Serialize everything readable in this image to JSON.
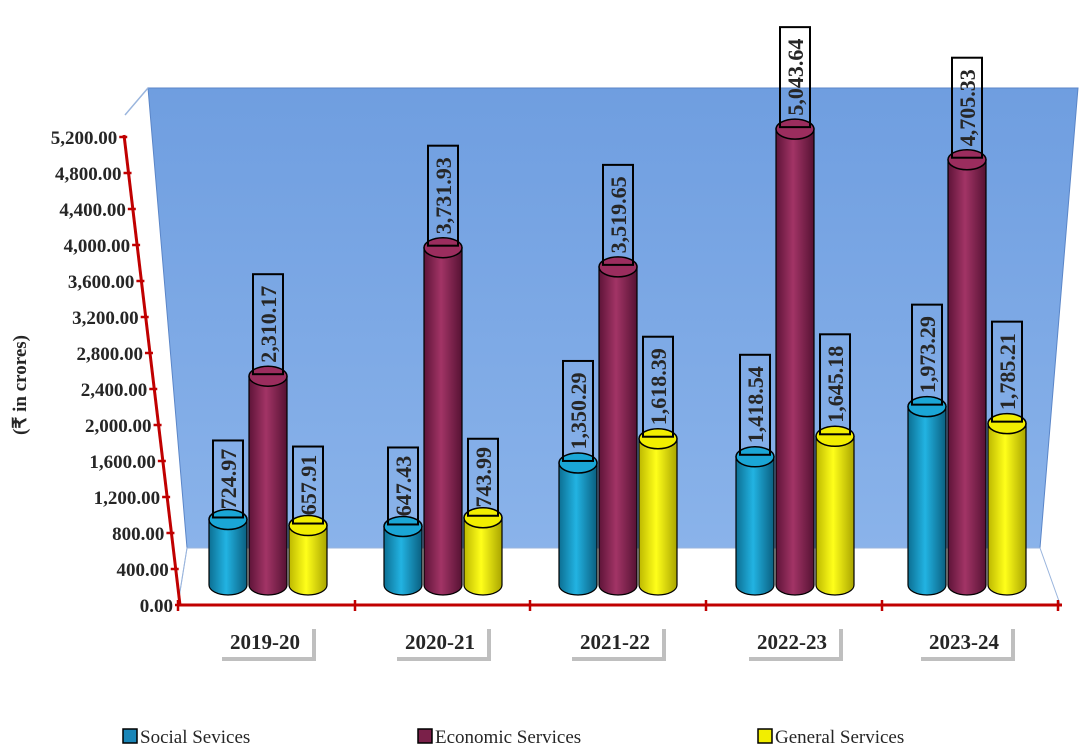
{
  "chart_data": {
    "type": "bar",
    "ylabel": "(₹ in crores)",
    "ylim": [
      0,
      5200
    ],
    "yticks": [
      "0.00",
      "400.00",
      "800.00",
      "1,200.00",
      "1,600.00",
      "2,000.00",
      "2,400.00",
      "2,800.00",
      "3,200.00",
      "3,600.00",
      "4,000.00",
      "4,400.00",
      "4,800.00",
      "5,200.00"
    ],
    "categories": [
      "2019-20",
      "2020-21",
      "2021-22",
      "2022-23",
      "2023-24"
    ],
    "series": [
      {
        "name": "Social Sevices",
        "color": "#1aa6d6",
        "values": [
          724.97,
          647.43,
          1350.29,
          1418.54,
          1973.29
        ],
        "labels": [
          "724.97",
          "647.43",
          "1,350.29",
          "1,418.54",
          "1,973.29"
        ]
      },
      {
        "name": "Economic Services",
        "color": "#9b2d5e",
        "values": [
          2310.17,
          3731.93,
          3519.65,
          5043.64,
          4705.33
        ],
        "labels": [
          "2,310.17",
          "3,731.93",
          "3,519.65",
          "5,043.64",
          "4,705.33"
        ]
      },
      {
        "name": "General Services",
        "color": "#f2ee00",
        "values": [
          657.91,
          743.99,
          1618.39,
          1645.18,
          1785.21
        ],
        "labels": [
          "657.91",
          "743.99",
          "1,618.39",
          "1,645.18",
          "1,785.21"
        ]
      }
    ],
    "legend_position": "bottom",
    "grid": false,
    "style": "3d-cylinder"
  }
}
